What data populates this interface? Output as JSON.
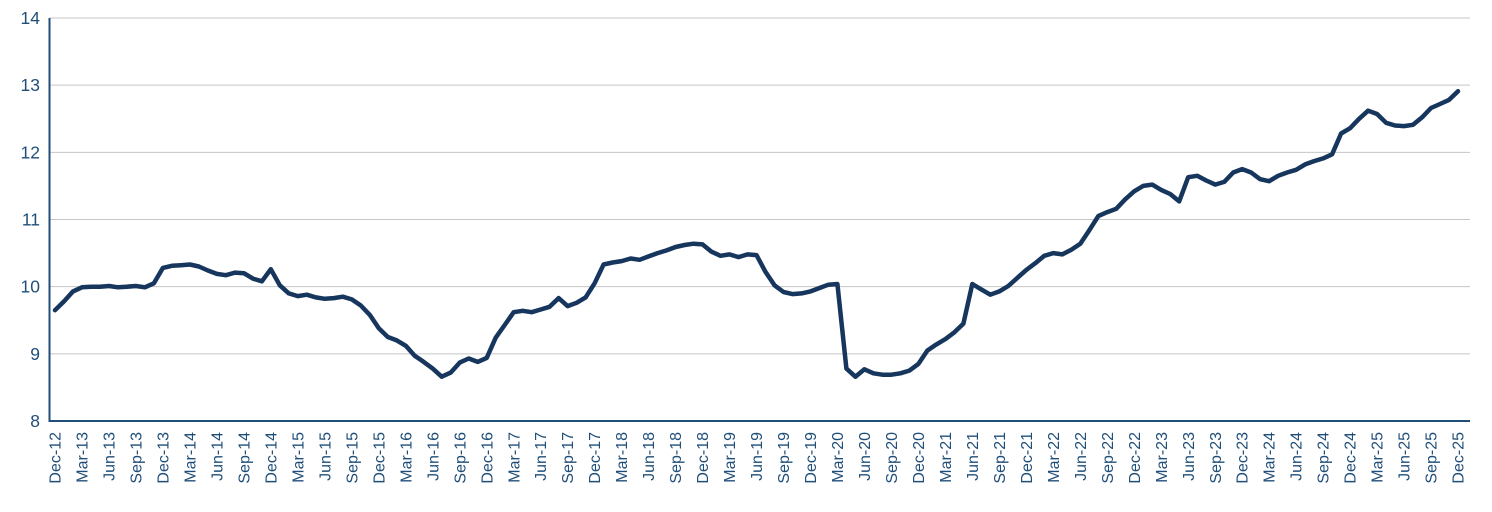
{
  "chart_data": {
    "type": "line",
    "title": "",
    "xlabel": "",
    "ylabel": "",
    "x_start": "Dec-12",
    "x_end": "Dec-25",
    "x_frequency": "monthly",
    "points_per_tick": 3,
    "x_tick_labels": [
      "Dec-12",
      "Mar-13",
      "Jun-13",
      "Sep-13",
      "Dec-13",
      "Mar-14",
      "Jun-14",
      "Sep-14",
      "Dec-14",
      "Mar-15",
      "Jun-15",
      "Sep-15",
      "Dec-15",
      "Mar-16",
      "Jun-16",
      "Sep-16",
      "Dec-16",
      "Mar-17",
      "Jun-17",
      "Sep-17",
      "Dec-17",
      "Mar-18",
      "Jun-18",
      "Sep-18",
      "Dec-18",
      "Mar-19",
      "Jun-19",
      "Sep-19",
      "Dec-19",
      "Mar-20",
      "Jun-20",
      "Sep-20",
      "Dec-20",
      "Mar-21",
      "Jun-21",
      "Sep-21",
      "Dec-21",
      "Mar-22",
      "Jun-22",
      "Sep-22",
      "Dec-22",
      "Mar-23",
      "Jun-23",
      "Sep-23",
      "Dec-23",
      "Mar-24",
      "Jun-24",
      "Sep-24",
      "Dec-24",
      "Mar-25",
      "Jun-25",
      "Sep-25",
      "Dec-25"
    ],
    "y_ticks": [
      8,
      9,
      10,
      11,
      12,
      13,
      14
    ],
    "ylim": [
      8,
      14
    ],
    "grid": "horizontal",
    "legend": "none",
    "series": [
      {
        "name": "series-1",
        "color": "#17365D",
        "values": [
          9.65,
          9.78,
          9.93,
          9.99,
          10.0,
          10.0,
          10.01,
          9.99,
          10.0,
          10.01,
          9.99,
          10.05,
          10.28,
          10.31,
          10.32,
          10.33,
          10.3,
          10.24,
          10.19,
          10.17,
          10.21,
          10.2,
          10.12,
          10.08,
          10.26,
          10.02,
          9.9,
          9.86,
          9.88,
          9.84,
          9.82,
          9.83,
          9.85,
          9.81,
          9.72,
          9.58,
          9.38,
          9.25,
          9.2,
          9.12,
          8.97,
          8.88,
          8.78,
          8.66,
          8.72,
          8.87,
          8.93,
          8.88,
          8.94,
          9.24,
          9.43,
          9.62,
          9.64,
          9.62,
          9.66,
          9.7,
          9.83,
          9.71,
          9.76,
          9.84,
          10.05,
          10.33,
          10.36,
          10.38,
          10.42,
          10.4,
          10.45,
          10.5,
          10.54,
          10.59,
          10.62,
          10.64,
          10.63,
          10.52,
          10.46,
          10.48,
          10.44,
          10.48,
          10.47,
          10.22,
          10.02,
          9.92,
          9.89,
          9.9,
          9.93,
          9.98,
          10.03,
          10.04,
          8.78,
          8.66,
          8.77,
          8.71,
          8.69,
          8.69,
          8.71,
          8.75,
          8.85,
          9.05,
          9.14,
          9.22,
          9.32,
          9.45,
          10.04,
          9.96,
          9.88,
          9.93,
          10.01,
          10.13,
          10.25,
          10.35,
          10.46,
          10.5,
          10.48,
          10.55,
          10.64,
          10.84,
          11.05,
          11.11,
          11.16,
          11.3,
          11.42,
          11.5,
          11.52,
          11.44,
          11.38,
          11.27,
          11.63,
          11.65,
          11.58,
          11.52,
          11.56,
          11.7,
          11.75,
          11.7,
          11.6,
          11.57,
          11.65,
          11.7,
          11.74,
          11.82,
          11.87,
          11.91,
          11.97,
          12.28,
          12.36,
          12.5,
          12.62,
          12.57,
          12.44,
          12.4,
          12.39,
          12.41,
          12.52,
          12.66,
          12.72,
          12.78,
          12.91
        ]
      }
    ],
    "colors": {
      "line": "#17365D",
      "axis": "#1F4E79",
      "tick_label": "#1F4E79",
      "gridline": "#C6C6C6",
      "background": "#FFFFFF"
    }
  }
}
